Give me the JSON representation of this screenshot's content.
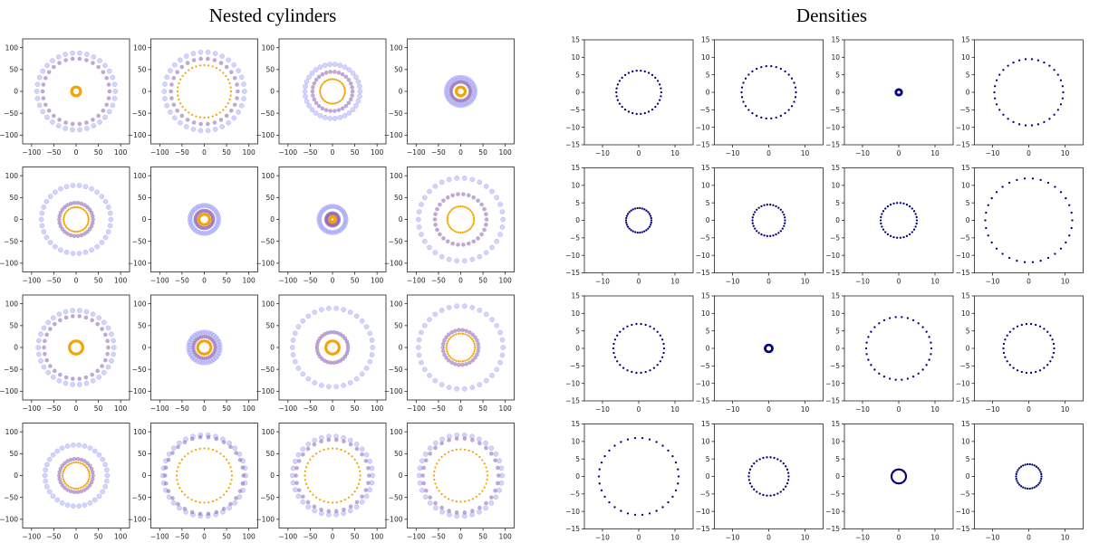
{
  "titles": {
    "left": "Nested cylinders",
    "right": "Densities"
  },
  "colors": {
    "inner_ring": "#f5a300",
    "outer_ring": "#8c8cf5",
    "middle_ring": "#8a63b0",
    "density_ring": "#000080",
    "axes": "#222222"
  },
  "chart_data": [
    {
      "type": "scatter",
      "group": "Nested cylinders",
      "layout": "4x4 grid",
      "xlim": [
        -120,
        120
      ],
      "ylim": [
        -120,
        120
      ],
      "xticks": [
        -100,
        -50,
        0,
        50,
        100
      ],
      "yticks": [
        -100,
        -50,
        0,
        50,
        100
      ],
      "panels": [
        {
          "rings": [
            {
              "name": "inner",
              "r": 10
            },
            {
              "name": "middle",
              "r": 75
            },
            {
              "name": "outer",
              "r": 88
            }
          ]
        },
        {
          "rings": [
            {
              "name": "inner",
              "r": 60
            },
            {
              "name": "middle",
              "r": 75
            },
            {
              "name": "outer",
              "r": 90
            }
          ]
        },
        {
          "rings": [
            {
              "name": "inner",
              "r": 28
            },
            {
              "name": "middle",
              "r": 45
            },
            {
              "name": "outer",
              "r": 62
            }
          ]
        },
        {
          "rings": [
            {
              "name": "inner",
              "r": 10
            },
            {
              "name": "middle",
              "r": 22
            },
            {
              "name": "outer",
              "r": 32
            }
          ]
        },
        {
          "rings": [
            {
              "name": "inner",
              "r": 28
            },
            {
              "name": "middle",
              "r": 38
            },
            {
              "name": "outer",
              "r": 78
            }
          ]
        },
        {
          "rings": [
            {
              "name": "inner",
              "r": 12
            },
            {
              "name": "middle",
              "r": 20
            },
            {
              "name": "outer",
              "r": 32
            }
          ]
        },
        {
          "rings": [
            {
              "name": "inner",
              "r": 6
            },
            {
              "name": "middle",
              "r": 14
            },
            {
              "name": "outer",
              "r": 30
            }
          ]
        },
        {
          "rings": [
            {
              "name": "inner",
              "r": 30
            },
            {
              "name": "middle",
              "r": 58
            },
            {
              "name": "outer",
              "r": 95
            }
          ]
        },
        {
          "rings": [
            {
              "name": "inner",
              "r": 15
            },
            {
              "name": "middle",
              "r": 72
            },
            {
              "name": "outer",
              "r": 85
            }
          ]
        },
        {
          "rings": [
            {
              "name": "inner",
              "r": 15
            },
            {
              "name": "middle",
              "r": 25
            },
            {
              "name": "outer",
              "r": 35
            }
          ]
        },
        {
          "rings": [
            {
              "name": "inner",
              "r": 15
            },
            {
              "name": "middle",
              "r": 35
            },
            {
              "name": "outer",
              "r": 90
            }
          ]
        },
        {
          "rings": [
            {
              "name": "inner",
              "r": 32
            },
            {
              "name": "middle",
              "r": 40
            },
            {
              "name": "outer",
              "r": 95
            }
          ]
        },
        {
          "rings": [
            {
              "name": "inner",
              "r": 30
            },
            {
              "name": "middle",
              "r": 38
            },
            {
              "name": "outer",
              "r": 70
            }
          ]
        },
        {
          "rings": [
            {
              "name": "inner",
              "r": 62
            },
            {
              "name": "middle",
              "r": 88
            },
            {
              "name": "outer",
              "r": 93
            }
          ]
        },
        {
          "rings": [
            {
              "name": "inner",
              "r": 62
            },
            {
              "name": "middle",
              "r": 82
            },
            {
              "name": "outer",
              "r": 90
            }
          ]
        },
        {
          "rings": [
            {
              "name": "inner",
              "r": 60
            },
            {
              "name": "middle",
              "r": 85
            },
            {
              "name": "outer",
              "r": 93
            }
          ]
        }
      ]
    },
    {
      "type": "scatter",
      "group": "Densities",
      "layout": "4x4 grid",
      "xlim": [
        -15,
        15
      ],
      "ylim": [
        -15,
        15
      ],
      "xticks": [
        -10,
        0,
        10
      ],
      "yticks": [
        -15,
        -10,
        -5,
        0,
        5,
        10,
        15
      ],
      "panels": [
        {
          "r": 6.2
        },
        {
          "r": 7.5
        },
        {
          "r": 0.8
        },
        {
          "r": 9.5
        },
        {
          "r": 3.5
        },
        {
          "r": 4.5
        },
        {
          "r": 5.0
        },
        {
          "r": 12.0
        },
        {
          "r": 7.0
        },
        {
          "r": 1.0
        },
        {
          "r": 9.0
        },
        {
          "r": 7.0
        },
        {
          "r": 11.0
        },
        {
          "r": 5.5
        },
        {
          "r": 2.0
        },
        {
          "r": 3.5
        }
      ]
    }
  ]
}
